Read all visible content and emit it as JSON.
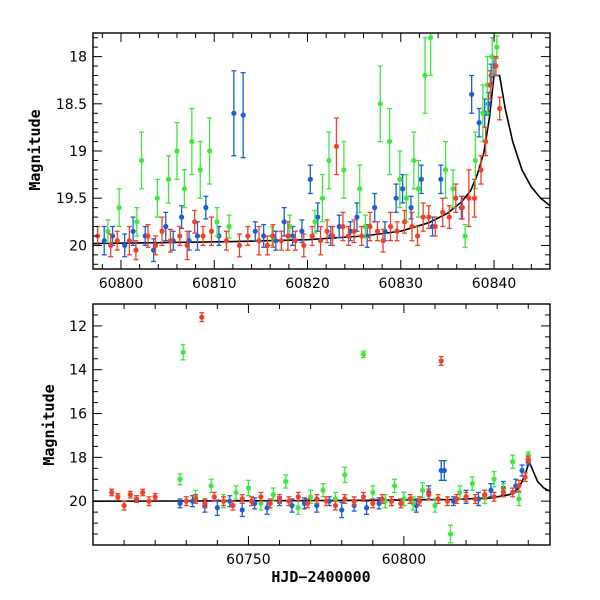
{
  "chart_data": [
    {
      "type": "scatter",
      "panel": "top",
      "title": "",
      "xlabel": "",
      "ylabel": "Magnitude",
      "xlim": [
        60797,
        60846
      ],
      "ylim": [
        20.25,
        17.75
      ],
      "y_inverted": true,
      "x_ticks": [
        60800,
        60810,
        60820,
        60830,
        60840
      ],
      "y_ticks": [
        18,
        18.5,
        19,
        19.5,
        20
      ],
      "y_tick_labels": [
        "18",
        "18.5",
        "19",
        "19.5",
        "20"
      ],
      "colors": {
        "blue": "#1a5fd6",
        "green": "#3ee83e",
        "red": "#f0402a",
        "model": "#000000"
      },
      "series": [
        {
          "color": "blue",
          "x": [
            60798.2,
            60799.1,
            60800.4,
            60801.3,
            60802.6,
            60803.5,
            60804.8,
            60805.6,
            60806.5,
            60807.3,
            60808.2,
            60809.1,
            60810.5,
            60812.1,
            60813.1,
            60814.4,
            60815.3,
            60816.6,
            60817.5,
            60818.4,
            60819.4,
            60820.3,
            60821.1,
            60822.5,
            60823.4,
            60824.6,
            60825.3,
            60826.4,
            60827.2,
            60828.3,
            60829.5,
            60830.2,
            60831.1,
            60832.2,
            60833.4,
            60834.3,
            60836.5,
            60837.6,
            60838.4,
            60839.0,
            60839.4,
            60839.7,
            60840.0
          ],
          "y": [
            19.95,
            19.9,
            20.0,
            19.85,
            19.9,
            20.05,
            19.8,
            19.95,
            19.7,
            19.95,
            19.9,
            19.6,
            19.9,
            18.6,
            18.62,
            19.85,
            19.9,
            19.95,
            19.75,
            19.9,
            19.85,
            19.3,
            19.7,
            19.9,
            19.8,
            19.85,
            19.7,
            19.9,
            19.6,
            19.85,
            19.5,
            19.4,
            19.6,
            19.3,
            19.8,
            19.3,
            19.6,
            18.4,
            18.7,
            18.6,
            18.5,
            18.2,
            18.1
          ],
          "err": [
            0.15,
            0.1,
            0.12,
            0.15,
            0.1,
            0.12,
            0.15,
            0.1,
            0.12,
            0.1,
            0.15,
            0.12,
            0.1,
            0.45,
            0.45,
            0.1,
            0.12,
            0.1,
            0.15,
            0.1,
            0.12,
            0.15,
            0.15,
            0.1,
            0.12,
            0.1,
            0.15,
            0.12,
            0.15,
            0.1,
            0.15,
            0.15,
            0.12,
            0.15,
            0.1,
            0.15,
            0.12,
            0.2,
            0.15,
            0.15,
            0.12,
            0.12,
            0.1
          ]
        },
        {
          "color": "green",
          "x": [
            60798.6,
            60799.8,
            60801.7,
            60802.2,
            60803.9,
            60805.1,
            60806.0,
            60806.8,
            60807.6,
            60808.5,
            60809.5,
            60810.3,
            60811.6,
            60816.2,
            60818.1,
            60820.8,
            60821.6,
            60822.3,
            60823.9,
            60825.6,
            60826.2,
            60827.8,
            60828.8,
            60829.9,
            60830.6,
            60831.4,
            60831.9,
            60832.6,
            60833.2,
            60834.8,
            60835.6,
            60836.9,
            60838.0,
            60838.8,
            60839.3,
            60839.8,
            60840.3
          ],
          "y": [
            19.85,
            19.6,
            19.75,
            19.1,
            19.5,
            19.3,
            19.0,
            19.4,
            18.9,
            19.2,
            19.0,
            19.75,
            19.8,
            19.9,
            19.8,
            19.75,
            19.5,
            19.1,
            19.2,
            19.4,
            19.8,
            18.5,
            18.9,
            19.3,
            19.5,
            19.1,
            19.4,
            18.2,
            17.8,
            19.2,
            19.4,
            19.9,
            19.1,
            18.6,
            18.3,
            18.0,
            17.9
          ],
          "err": [
            0.12,
            0.2,
            0.15,
            0.3,
            0.2,
            0.25,
            0.3,
            0.2,
            0.35,
            0.3,
            0.35,
            0.15,
            0.12,
            0.1,
            0.12,
            0.12,
            0.25,
            0.3,
            0.3,
            0.25,
            0.12,
            0.4,
            0.35,
            0.3,
            0.25,
            0.3,
            0.3,
            0.4,
            0.4,
            0.3,
            0.2,
            0.12,
            0.3,
            0.3,
            0.3,
            0.2,
            0.12
          ]
        },
        {
          "color": "red",
          "x": [
            60797.5,
            60798.9,
            60799.6,
            60800.9,
            60801.6,
            60802.9,
            60803.7,
            60804.4,
            60805.3,
            60806.3,
            60807.1,
            60807.9,
            60808.8,
            60809.7,
            60811.3,
            60812.7,
            60813.6,
            60814.8,
            60815.7,
            60816.3,
            60817.2,
            60817.9,
            60818.7,
            60819.6,
            60820.5,
            60821.4,
            60822.1,
            60822.7,
            60823.1,
            60823.8,
            60824.4,
            60825.0,
            60825.8,
            60826.7,
            60827.5,
            60828.1,
            60828.9,
            60829.6,
            60830.4,
            60831.2,
            60831.8,
            60832.4,
            60833.0,
            60833.7,
            60834.5,
            60835.2,
            60835.9,
            60836.6,
            60837.3,
            60837.9,
            60838.6,
            60839.1,
            60839.6,
            60840.2,
            60840.6
          ],
          "y": [
            19.9,
            20.0,
            19.95,
            19.95,
            20.05,
            19.9,
            20.0,
            19.85,
            19.95,
            19.9,
            20.0,
            19.75,
            19.9,
            19.85,
            19.95,
            20.0,
            19.9,
            19.95,
            20.0,
            19.9,
            19.95,
            19.9,
            19.95,
            20.0,
            19.9,
            19.95,
            19.85,
            19.9,
            18.95,
            19.8,
            19.9,
            19.85,
            19.9,
            19.8,
            19.85,
            19.95,
            19.8,
            19.85,
            19.75,
            19.8,
            19.9,
            19.7,
            19.7,
            19.8,
            19.65,
            19.7,
            19.5,
            19.6,
            19.5,
            19.5,
            19.2,
            18.9,
            18.3,
            18.1,
            18.55
          ],
          "err": [
            0.1,
            0.12,
            0.1,
            0.15,
            0.1,
            0.12,
            0.1,
            0.15,
            0.12,
            0.1,
            0.15,
            0.12,
            0.1,
            0.15,
            0.1,
            0.12,
            0.1,
            0.15,
            0.1,
            0.12,
            0.1,
            0.15,
            0.1,
            0.12,
            0.1,
            0.15,
            0.12,
            0.1,
            0.3,
            0.15,
            0.1,
            0.12,
            0.1,
            0.15,
            0.1,
            0.12,
            0.15,
            0.1,
            0.12,
            0.15,
            0.1,
            0.15,
            0.12,
            0.1,
            0.15,
            0.12,
            0.15,
            0.12,
            0.3,
            0.2,
            0.15,
            0.15,
            0.15,
            0.1,
            0.12
          ]
        }
      ],
      "model": {
        "color": "model",
        "x": [
          60797,
          60805,
          60812,
          60820,
          60826,
          60830,
          60833,
          60835,
          60836.5,
          60837.5,
          60838.2,
          60838.9,
          60839.5,
          60840.0,
          60840.6,
          60841.2,
          60842.0,
          60843.0,
          60844.0,
          60845.0,
          60846.0
        ],
        "y": [
          19.98,
          19.97,
          19.96,
          19.94,
          19.9,
          19.85,
          19.76,
          19.66,
          19.54,
          19.42,
          19.25,
          19.02,
          18.65,
          18.2,
          18.2,
          18.55,
          18.9,
          19.2,
          19.38,
          19.5,
          19.58
        ]
      }
    },
    {
      "type": "scatter",
      "panel": "bottom",
      "title": "",
      "xlabel": "HJD−2400000",
      "ylabel": "Magnitude",
      "xlim": [
        60700,
        60847
      ],
      "ylim": [
        22,
        11
      ],
      "y_inverted": true,
      "x_ticks": [
        60750,
        60800
      ],
      "y_ticks": [
        12,
        14,
        16,
        18,
        20
      ],
      "y_tick_labels": [
        "12",
        "14",
        "16",
        "18",
        "20"
      ],
      "colors": {
        "blue": "#1a5fd6",
        "green": "#3ee83e",
        "red": "#f0402a",
        "model": "#000000"
      },
      "series": [
        {
          "color": "blue",
          "x": [
            60728,
            60732,
            60736,
            60740,
            60744,
            60748,
            60752,
            60756,
            60760,
            60764,
            60768,
            60772,
            60776,
            60780,
            60784,
            60788,
            60792,
            60796,
            60800,
            60804,
            60808,
            60812,
            60813,
            60816,
            60820,
            60824,
            60828,
            60832,
            60836,
            60838,
            60840
          ],
          "y": [
            20.1,
            20.0,
            20.2,
            20.3,
            20.0,
            20.4,
            20.1,
            20.3,
            20.0,
            20.2,
            20.1,
            20.2,
            20.0,
            20.4,
            20.2,
            20.3,
            20.1,
            20.0,
            19.9,
            20.2,
            19.6,
            18.6,
            18.6,
            20.0,
            19.8,
            19.9,
            19.5,
            19.4,
            19.3,
            18.6,
            18.2
          ],
          "err": [
            0.2,
            0.25,
            0.3,
            0.35,
            0.25,
            0.3,
            0.25,
            0.3,
            0.2,
            0.3,
            0.25,
            0.3,
            0.2,
            0.35,
            0.25,
            0.3,
            0.25,
            0.2,
            0.3,
            0.3,
            0.3,
            0.45,
            0.45,
            0.2,
            0.3,
            0.3,
            0.3,
            0.3,
            0.3,
            0.25,
            0.15
          ]
        },
        {
          "color": "green",
          "x": [
            60728,
            60729,
            60733,
            60738,
            60742,
            60746,
            60750,
            60754,
            60758,
            60762,
            60766,
            60770,
            60774,
            60778,
            60781,
            60787,
            60790,
            60794,
            60797,
            60800,
            60803,
            60806,
            60810,
            60815,
            60818,
            60822,
            60826,
            60829,
            60832,
            60835,
            60837,
            60840
          ],
          "y": [
            19.0,
            13.2,
            19.8,
            19.3,
            20.0,
            19.6,
            19.4,
            20.1,
            19.7,
            19.1,
            20.3,
            19.8,
            19.5,
            19.9,
            18.8,
            13.3,
            19.6,
            20.0,
            19.3,
            19.9,
            20.1,
            19.5,
            20.2,
            21.5,
            19.6,
            19.2,
            19.8,
            19.0,
            19.5,
            18.2,
            19.9,
            17.9
          ],
          "err": [
            0.25,
            0.35,
            0.3,
            0.3,
            0.3,
            0.3,
            0.35,
            0.3,
            0.3,
            0.3,
            0.3,
            0.3,
            0.3,
            0.3,
            0.35,
            0.15,
            0.3,
            0.3,
            0.3,
            0.3,
            0.3,
            0.35,
            0.3,
            0.4,
            0.3,
            0.3,
            0.3,
            0.35,
            0.3,
            0.3,
            0.3,
            0.15
          ]
        },
        {
          "color": "red",
          "x": [
            60706,
            60708,
            60710,
            60712,
            60714,
            60716,
            60718,
            60720,
            60735,
            60812,
            60730,
            60733,
            60736,
            60739,
            60742,
            60745,
            60748,
            60751,
            60754,
            60757,
            60760,
            60763,
            60766,
            60769,
            60772,
            60775,
            60778,
            60781,
            60784,
            60787,
            60790,
            60793,
            60796,
            60799,
            60802,
            60805,
            60808,
            60811,
            60814,
            60817,
            60820,
            60823,
            60826,
            60829,
            60832,
            60835,
            60837,
            60839,
            60840
          ],
          "y": [
            19.6,
            19.8,
            20.2,
            19.7,
            19.9,
            19.6,
            20.0,
            19.8,
            11.6,
            13.6,
            20.0,
            19.9,
            20.1,
            19.8,
            20.0,
            20.2,
            19.9,
            20.0,
            19.8,
            20.1,
            19.9,
            20.0,
            19.8,
            20.1,
            19.9,
            20.0,
            20.2,
            19.9,
            20.0,
            19.8,
            20.1,
            19.9,
            20.0,
            20.1,
            19.9,
            20.0,
            19.7,
            19.9,
            20.0,
            19.9,
            19.8,
            19.9,
            19.7,
            19.8,
            19.6,
            19.6,
            19.3,
            18.9,
            18.1
          ],
          "err": [
            0.15,
            0.15,
            0.2,
            0.15,
            0.15,
            0.15,
            0.2,
            0.15,
            0.2,
            0.2,
            0.2,
            0.2,
            0.2,
            0.2,
            0.2,
            0.2,
            0.2,
            0.2,
            0.2,
            0.2,
            0.2,
            0.2,
            0.2,
            0.2,
            0.2,
            0.2,
            0.2,
            0.2,
            0.2,
            0.2,
            0.2,
            0.2,
            0.2,
            0.2,
            0.2,
            0.2,
            0.25,
            0.2,
            0.2,
            0.2,
            0.2,
            0.2,
            0.2,
            0.2,
            0.2,
            0.2,
            0.25,
            0.2,
            0.15
          ]
        }
      ],
      "model": {
        "color": "model",
        "x": [
          60700,
          60730,
          60760,
          60790,
          60815,
          60828,
          60834,
          60837,
          60839,
          60840.3,
          60841.5,
          60843,
          60845,
          60847
        ],
        "y": [
          20.0,
          19.99,
          19.98,
          19.96,
          19.93,
          19.85,
          19.7,
          19.4,
          18.8,
          18.2,
          18.6,
          19.1,
          19.4,
          19.55
        ]
      }
    }
  ]
}
